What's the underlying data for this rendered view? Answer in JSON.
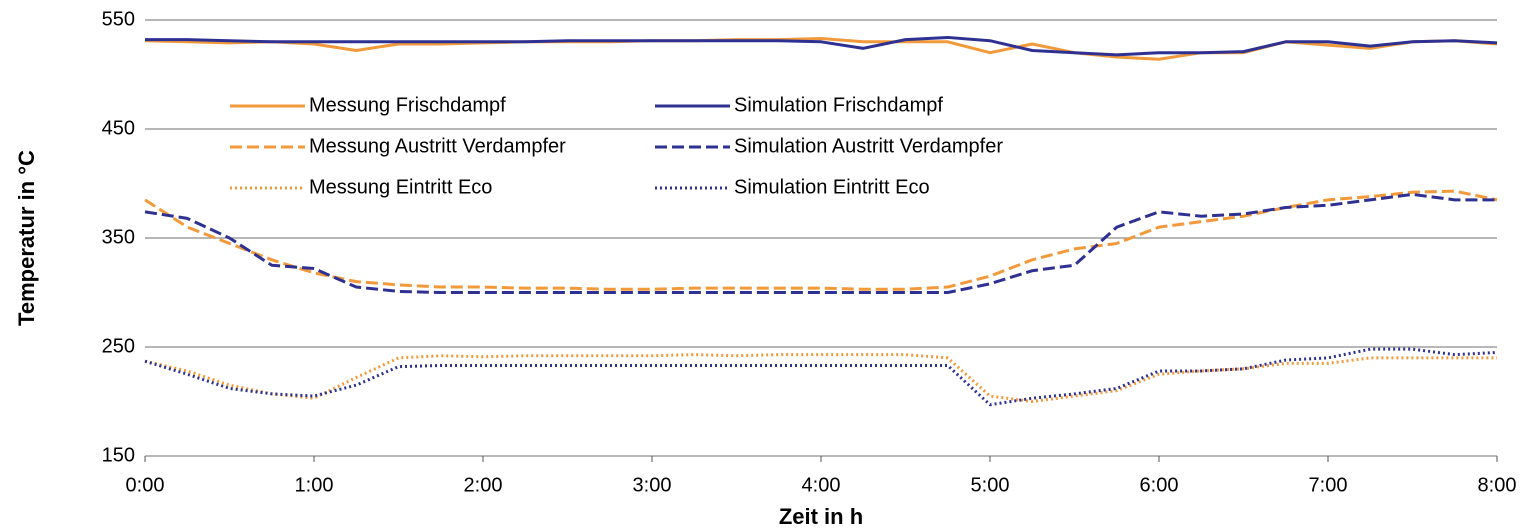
{
  "chart_data": {
    "type": "line",
    "xlabel": "Zeit in h",
    "ylabel": "Temperatur in °C",
    "x": [
      0,
      0.25,
      0.5,
      0.75,
      1,
      1.25,
      1.5,
      1.75,
      2,
      2.25,
      2.5,
      2.75,
      3,
      3.25,
      3.5,
      3.75,
      4,
      4.25,
      4.5,
      4.75,
      5,
      5.25,
      5.5,
      5.75,
      6,
      6.25,
      6.5,
      6.75,
      7,
      7.25,
      7.5,
      7.75,
      8
    ],
    "xlim": [
      0,
      8
    ],
    "xticks": [
      {
        "value": 0,
        "label": "0:00"
      },
      {
        "value": 1,
        "label": "1:00"
      },
      {
        "value": 2,
        "label": "2:00"
      },
      {
        "value": 3,
        "label": "3:00"
      },
      {
        "value": 4,
        "label": "4:00"
      },
      {
        "value": 5,
        "label": "5:00"
      },
      {
        "value": 6,
        "label": "6:00"
      },
      {
        "value": 7,
        "label": "7:00"
      },
      {
        "value": 8,
        "label": "8:00"
      }
    ],
    "ylim": [
      150,
      550
    ],
    "yticks": [
      150,
      250,
      350,
      450,
      550
    ],
    "grid": true,
    "series": [
      {
        "name": "Messung Frischdampf",
        "color": "#f29a3b",
        "dash": "solid",
        "values": [
          531,
          530,
          529,
          530,
          528,
          522,
          528,
          528,
          529,
          530,
          530,
          530,
          531,
          531,
          532,
          532,
          533,
          530,
          530,
          530,
          520,
          528,
          520,
          516,
          514,
          520,
          520,
          530,
          527,
          524,
          530,
          531,
          528
        ]
      },
      {
        "name": "Simulation Frischdampf",
        "color": "#2e3192",
        "dash": "solid",
        "values": [
          532,
          532,
          531,
          530,
          530,
          530,
          530,
          530,
          530,
          530,
          531,
          531,
          531,
          531,
          531,
          531,
          530,
          524,
          532,
          534,
          531,
          522,
          520,
          518,
          520,
          520,
          521,
          530,
          530,
          526,
          530,
          531,
          529
        ]
      },
      {
        "name": "Messung Austritt Verdampfer",
        "color": "#f29a3b",
        "dash": "dashed",
        "values": [
          385,
          360,
          345,
          330,
          318,
          310,
          307,
          305,
          305,
          304,
          304,
          303,
          303,
          304,
          304,
          304,
          304,
          303,
          303,
          305,
          315,
          330,
          340,
          345,
          360,
          365,
          370,
          378,
          385,
          388,
          392,
          393,
          385
        ]
      },
      {
        "name": "Simulation Austritt Verdampfer",
        "color": "#2e3192",
        "dash": "dashed",
        "values": [
          374,
          368,
          350,
          325,
          322,
          305,
          301,
          300,
          300,
          300,
          300,
          300,
          300,
          300,
          300,
          300,
          300,
          300,
          300,
          300,
          308,
          320,
          325,
          360,
          374,
          370,
          372,
          378,
          380,
          385,
          390,
          385,
          385
        ]
      },
      {
        "name": "Messung Eintritt Eco",
        "color": "#f29a3b",
        "dash": "dotted",
        "values": [
          237,
          228,
          215,
          207,
          203,
          222,
          240,
          242,
          241,
          242,
          242,
          242,
          242,
          243,
          242,
          243,
          243,
          243,
          243,
          240,
          205,
          200,
          205,
          210,
          225,
          228,
          230,
          235,
          235,
          240,
          240,
          240,
          240
        ]
      },
      {
        "name": "Simulation Eintritt Eco",
        "color": "#2e3192",
        "dash": "dotted",
        "values": [
          237,
          225,
          212,
          207,
          205,
          215,
          232,
          233,
          233,
          233,
          233,
          233,
          233,
          233,
          233,
          233,
          233,
          233,
          233,
          233,
          197,
          203,
          207,
          212,
          228,
          228,
          230,
          238,
          240,
          248,
          248,
          243,
          245
        ]
      }
    ]
  }
}
